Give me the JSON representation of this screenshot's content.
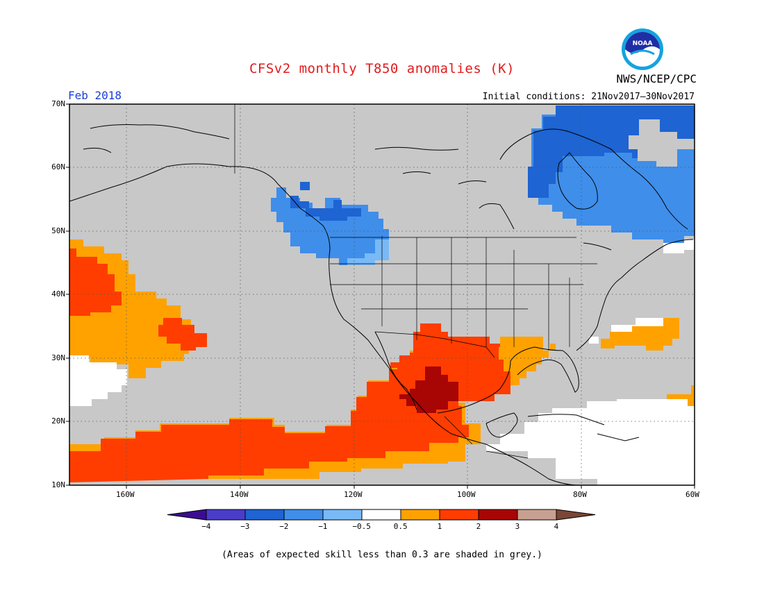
{
  "title": "CFSv2 monthly T850 anomalies (K)",
  "period": "Feb 2018",
  "initial_conditions": "Initial conditions: 21Nov2017–30Nov2017",
  "agency": "NWS/NCEP/CPC",
  "logo_text": "NOAA",
  "footnote": "(Areas of expected skill less than 0.3 are shaded in grey.)",
  "lat_labels": [
    "70N",
    "60N",
    "50N",
    "40N",
    "30N",
    "20N",
    "10N"
  ],
  "lon_labels": [
    "160W",
    "140W",
    "120W",
    "100W",
    "80W",
    "60W"
  ],
  "colorbar": {
    "tick_labels": [
      "−4",
      "−3",
      "−2",
      "−1",
      "−0.5",
      "0.5",
      "1",
      "2",
      "3",
      "4"
    ],
    "colors": [
      "#3b0c92",
      "#4a3dc8",
      "#1e64d2",
      "#3f8eea",
      "#78b9f6",
      "#ffffff",
      "#ffa200",
      "#ff3d00",
      "#a80505",
      "#c8a091",
      "#7a4636"
    ]
  },
  "colors": {
    "skill_grey": "#c8c8c8",
    "title_red": "#e31a1c",
    "period_blue": "#1a3fd6"
  }
}
